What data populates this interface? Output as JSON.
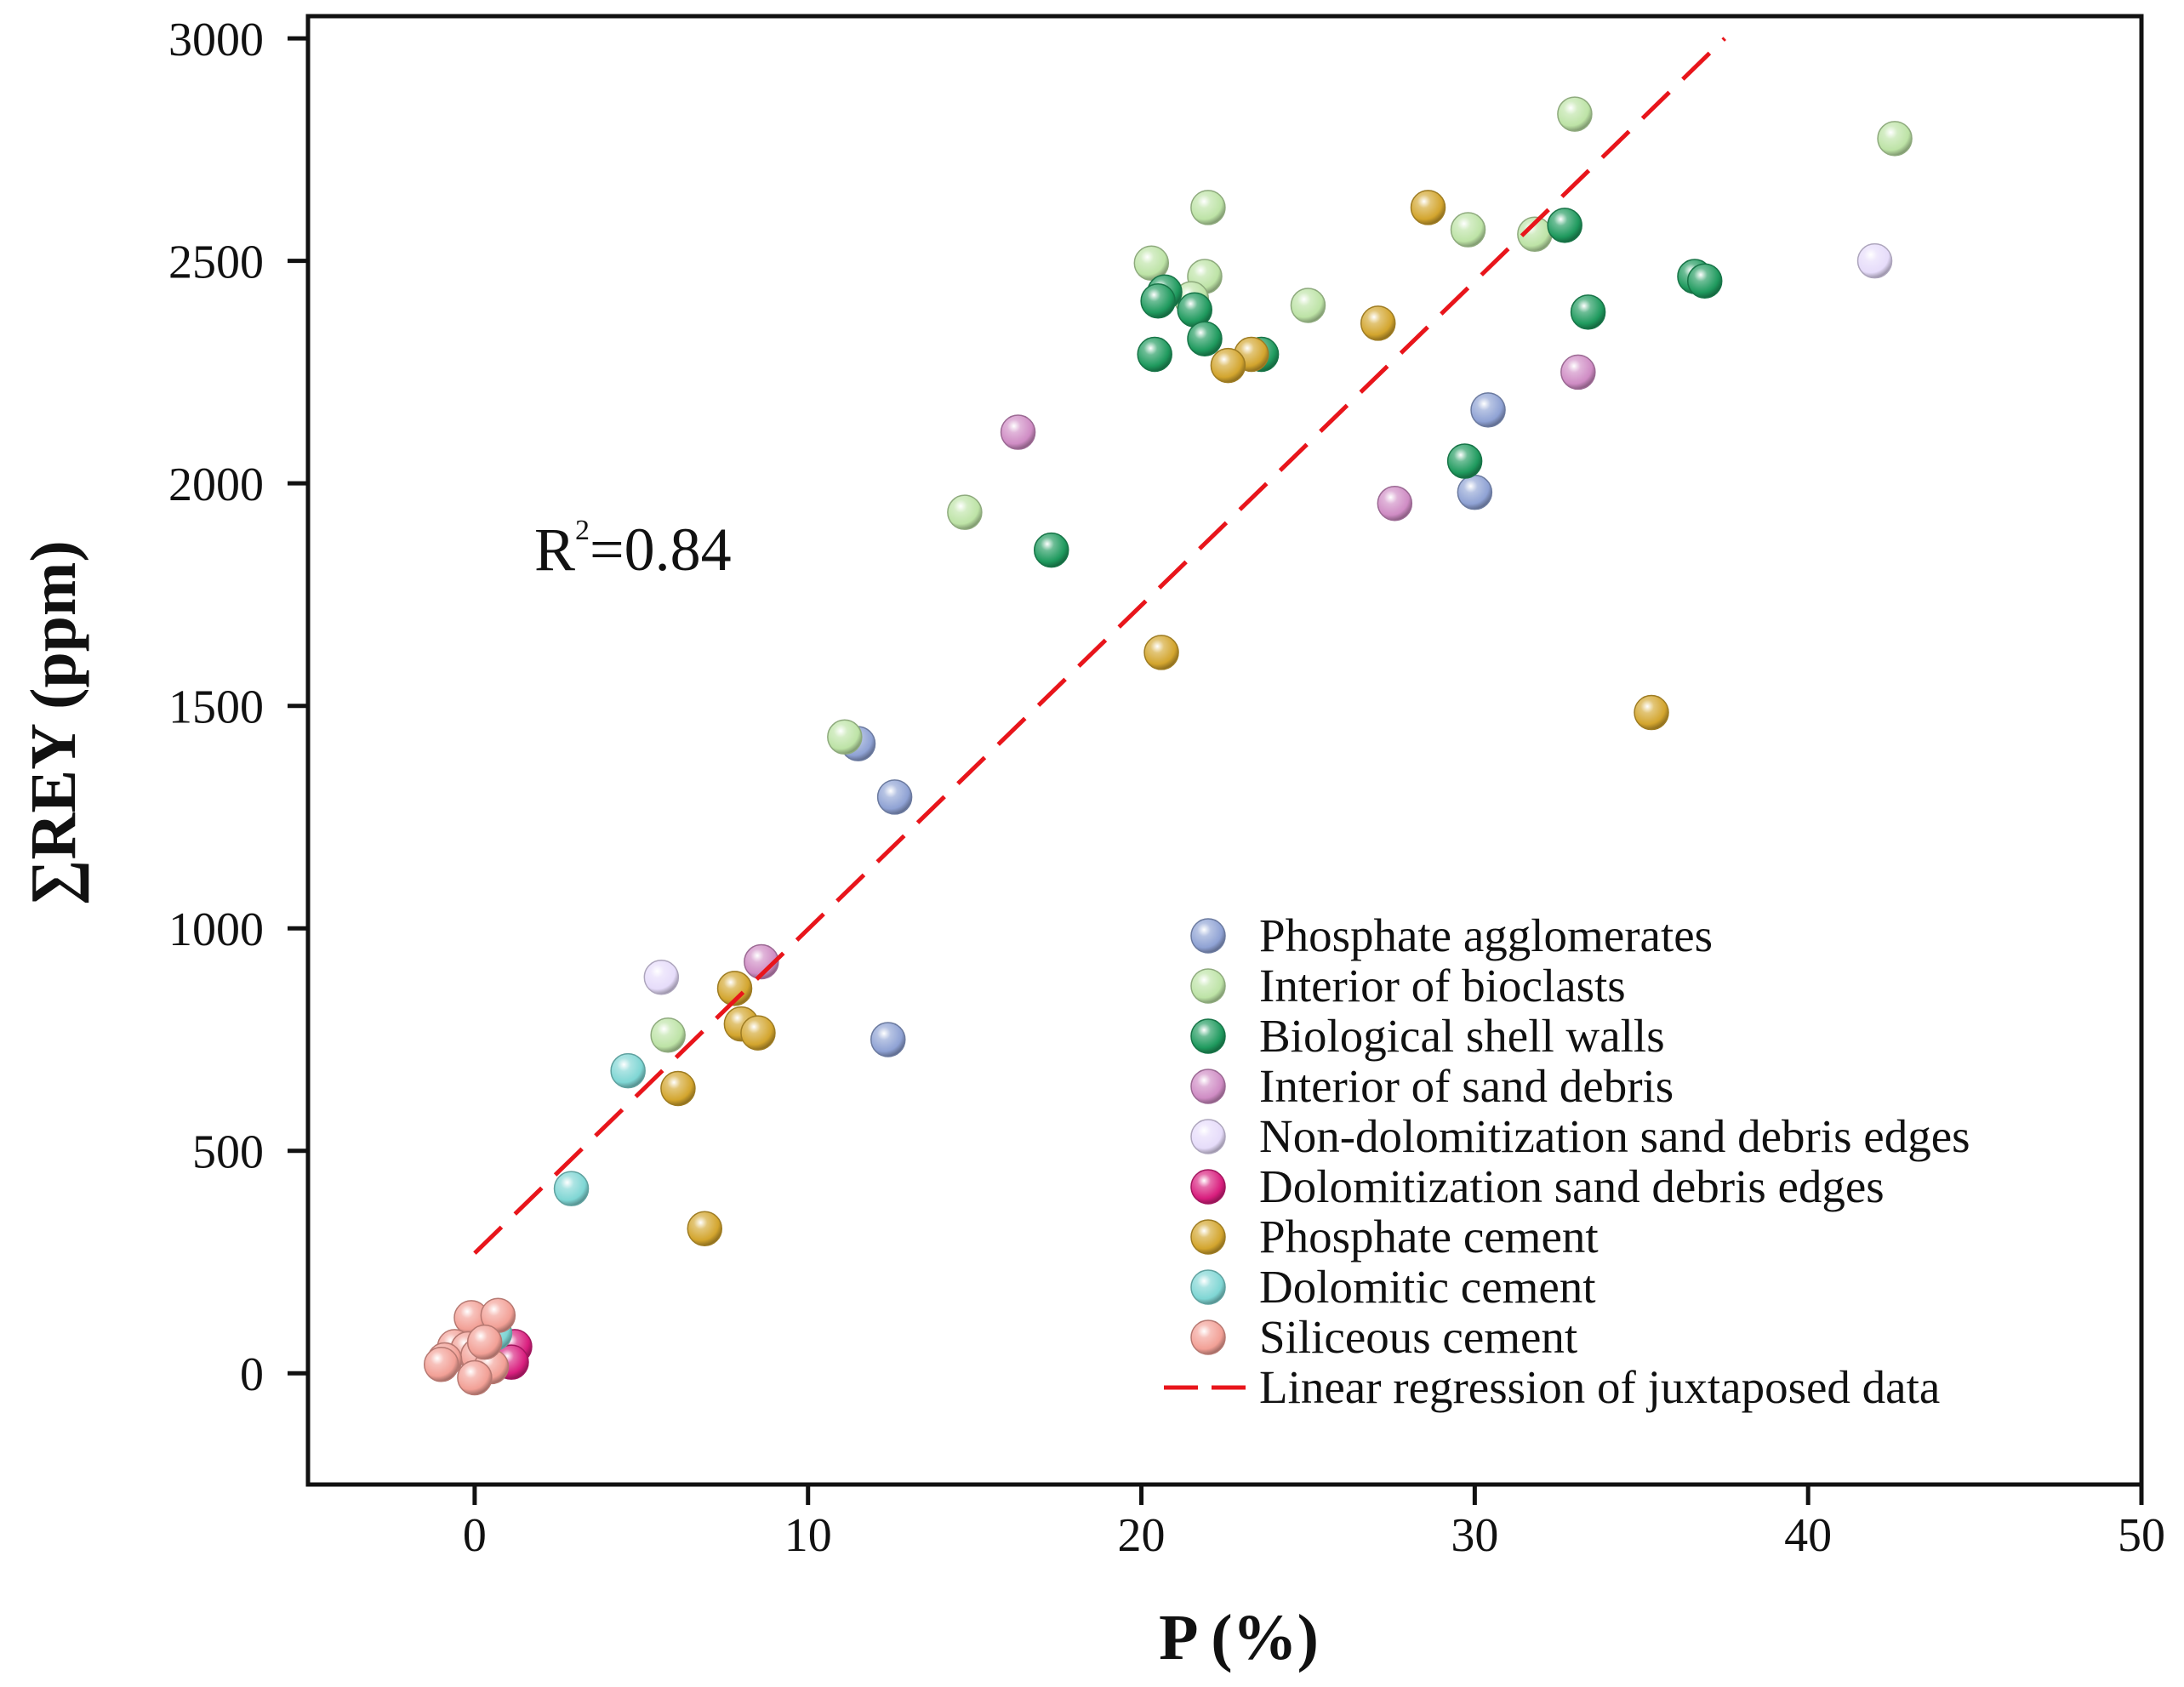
{
  "chart_data": {
    "type": "scatter",
    "title": "",
    "xlabel": "P (%)",
    "ylabel": "∑REY (ppm)",
    "xlim": [
      -5,
      50
    ],
    "ylim": [
      -250,
      3050
    ],
    "xticks": [
      0,
      10,
      20,
      30,
      40,
      50
    ],
    "yticks": [
      0,
      500,
      1000,
      1500,
      2000,
      2500,
      3000
    ],
    "xtick_labels": [
      "0",
      "10",
      "20",
      "30",
      "40",
      "50"
    ],
    "ytick_labels": [
      "0",
      "500",
      "1000",
      "1500",
      "2000",
      "2500",
      "3000"
    ],
    "grid": false,
    "legend_position": "bottom-right",
    "annotation": {
      "text": "R",
      "sup": "2",
      "value": "=0.84"
    },
    "series": [
      {
        "name": "Phosphate agglomerates",
        "color": "#8fa2d4",
        "points": [
          [
            11.5,
            1415
          ],
          [
            12.6,
            1295
          ],
          [
            12.4,
            750
          ],
          [
            30.4,
            2165
          ],
          [
            30.0,
            1980
          ]
        ]
      },
      {
        "name": "Interior of bioclasts",
        "color": "#bde3a6",
        "points": [
          [
            33.0,
            2830
          ],
          [
            42.6,
            2775
          ],
          [
            22.0,
            2620
          ],
          [
            20.3,
            2495
          ],
          [
            21.9,
            2465
          ],
          [
            21.5,
            2415
          ],
          [
            29.8,
            2570
          ],
          [
            31.8,
            2560
          ],
          [
            25.0,
            2400
          ],
          [
            14.7,
            1935
          ],
          [
            11.1,
            1430
          ],
          [
            5.8,
            760
          ]
        ]
      },
      {
        "name": "Biological shell walls",
        "color": "#1f9a5e",
        "points": [
          [
            32.7,
            2580
          ],
          [
            36.6,
            2465
          ],
          [
            36.9,
            2455
          ],
          [
            33.4,
            2385
          ],
          [
            20.7,
            2430
          ],
          [
            20.5,
            2410
          ],
          [
            21.6,
            2390
          ],
          [
            21.9,
            2325
          ],
          [
            20.4,
            2290
          ],
          [
            23.6,
            2290
          ],
          [
            29.7,
            2050
          ],
          [
            17.3,
            1850
          ]
        ]
      },
      {
        "name": "Interior of sand debris",
        "color": "#cf8cc4",
        "points": [
          [
            16.3,
            2115
          ],
          [
            33.1,
            2250
          ],
          [
            27.6,
            1955
          ],
          [
            8.6,
            925
          ]
        ]
      },
      {
        "name": "Non-dolomitization sand debris edges",
        "color": "#e6dcfa",
        "points": [
          [
            42.0,
            2500
          ],
          [
            5.6,
            890
          ]
        ]
      },
      {
        "name": "Dolomitization sand debris edges",
        "color": "#d91e7e",
        "points": [
          [
            1.2,
            60
          ],
          [
            1.1,
            25
          ]
        ]
      },
      {
        "name": "Phosphate cement",
        "color": "#d3a52e",
        "points": [
          [
            28.6,
            2620
          ],
          [
            27.1,
            2360
          ],
          [
            23.3,
            2290
          ],
          [
            22.6,
            2265
          ],
          [
            20.6,
            1620
          ],
          [
            35.3,
            1485
          ],
          [
            7.8,
            865
          ],
          [
            8.0,
            785
          ],
          [
            8.5,
            765
          ],
          [
            6.1,
            640
          ],
          [
            6.9,
            325
          ]
        ]
      },
      {
        "name": "Dolomitic cement",
        "color": "#7fd6d4",
        "points": [
          [
            4.6,
            680
          ],
          [
            2.9,
            415
          ],
          [
            0.6,
            90
          ]
        ]
      },
      {
        "name": "Siliceous cement",
        "color": "#f2a096",
        "points": [
          [
            -0.1,
            125
          ],
          [
            0.7,
            130
          ],
          [
            -0.6,
            60
          ],
          [
            -0.2,
            55
          ],
          [
            0.1,
            40
          ],
          [
            -0.9,
            30
          ],
          [
            -1.0,
            20
          ],
          [
            0.5,
            15
          ],
          [
            0.0,
            -10
          ],
          [
            0.3,
            70
          ]
        ]
      }
    ],
    "regression": {
      "name": "Linear regression of juxtaposed data",
      "color": "#e8151b",
      "x": [
        0,
        37.5
      ],
      "y": [
        270,
        3000
      ]
    }
  }
}
